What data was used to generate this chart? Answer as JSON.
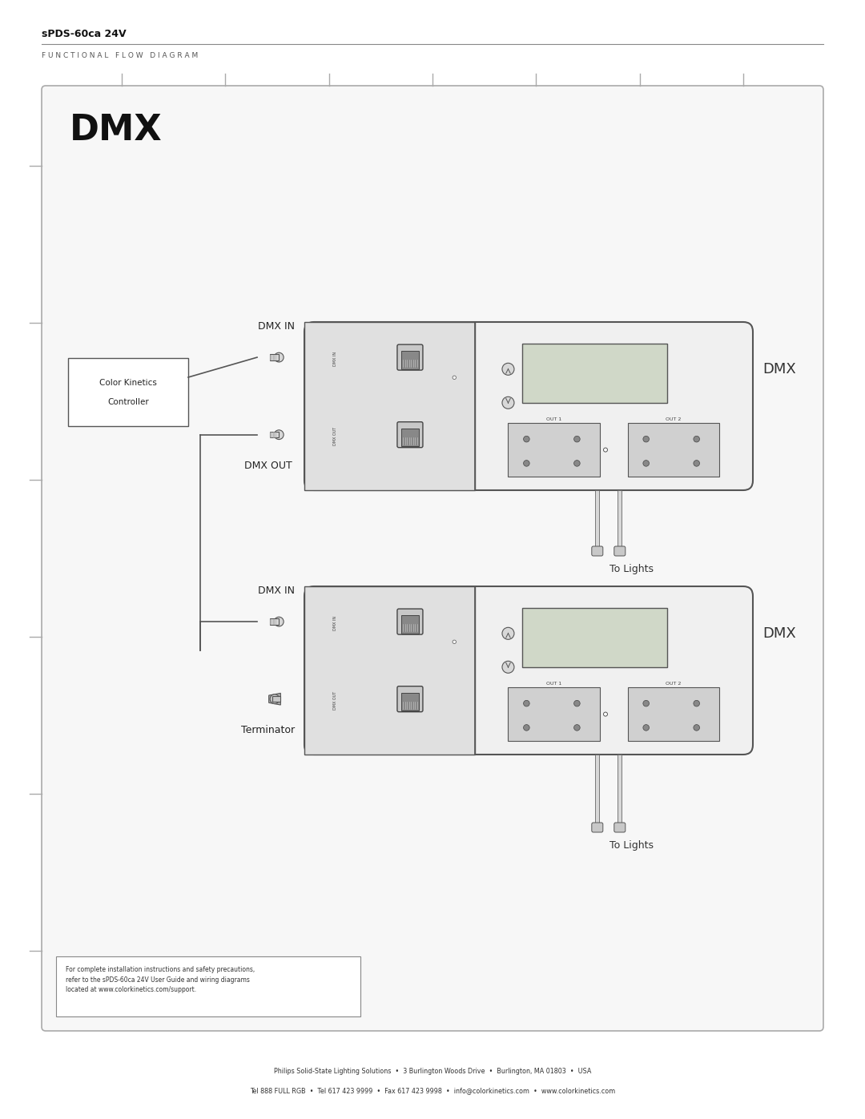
{
  "title": "sPDS-60ca 24V",
  "subtitle": "FUNCTIONAL FLOW DIAGRAM",
  "bg_color": "#ffffff",
  "border_color": "#cccccc",
  "diagram_bg": "#f8f8f8",
  "text_color": "#222222",
  "line_color": "#555555",
  "footer_line1": "Philips Solid-State Lighting Solutions  •  3 Burlington Woods Drive  •  Burlington, MA 01803  •  USA",
  "footer_line2": "Tel 888 FULL RGB  •  Tel 617 423 9999  •  Fax 617 423 9998  •  info@colorkinetics.com  •  www.colorkinetics.com",
  "disclaimer": "For complete installation instructions and safety precautions,\nrefer to the sPDS-60ca 24V User Guide and wiring diagrams\nlocated at www.colorkinetics.com/support.",
  "dmx_label": "DMX",
  "controller_label": "Color Kinetics\nController",
  "dmx_in_label": "DMX IN",
  "dmx_out_label": "DMX OUT",
  "terminator_label": "Terminator",
  "to_lights_label": "To Lights",
  "out1_label": "OUT 1",
  "out2_label": "OUT 2"
}
